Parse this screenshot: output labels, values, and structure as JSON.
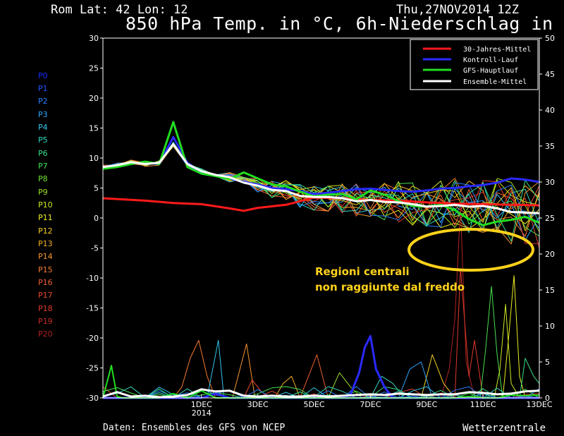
{
  "header": {
    "location": "Rom   Lat: 42 Lon: 12",
    "date": "Thu,27NOV2014 12Z",
    "title": "850 hPa Temp. in °C, 6h-Niederschlag in mm"
  },
  "footer": {
    "source": "Daten: Ensembles des GFS von NCEP",
    "brand": "Wetterzentrale"
  },
  "members": [
    {
      "label": "P0",
      "color": "#1b2bff"
    },
    {
      "label": "P1",
      "color": "#2255ff"
    },
    {
      "label": "P2",
      "color": "#2a80ff"
    },
    {
      "label": "P3",
      "color": "#2fa6ff"
    },
    {
      "label": "P4",
      "color": "#33c6ee"
    },
    {
      "label": "P5",
      "color": "#33d6c0"
    },
    {
      "label": "P6",
      "color": "#35de88"
    },
    {
      "label": "P7",
      "color": "#45e050"
    },
    {
      "label": "P8",
      "color": "#6ee030"
    },
    {
      "label": "P9",
      "color": "#a0e024"
    },
    {
      "label": "P10",
      "color": "#ccea22"
    },
    {
      "label": "P11",
      "color": "#ecec22"
    },
    {
      "label": "P12",
      "color": "#f4d022"
    },
    {
      "label": "P13",
      "color": "#f5b024"
    },
    {
      "label": "P14",
      "color": "#f59630"
    },
    {
      "label": "P15",
      "color": "#f57b30"
    },
    {
      "label": "P16",
      "color": "#f06030"
    },
    {
      "label": "P17",
      "color": "#e84830"
    },
    {
      "label": "P18",
      "color": "#df3a2c"
    },
    {
      "label": "P19",
      "color": "#c92b28"
    },
    {
      "label": "P20",
      "color": "#b02222"
    }
  ],
  "legend": [
    {
      "label": "30-Jahres-Mittel",
      "color": "#ff1a1a"
    },
    {
      "label": "Kontroll-Lauf",
      "color": "#2a2aff"
    },
    {
      "label": "GFS-Hauptlauf",
      "color": "#22dd22"
    },
    {
      "label": "Ensemble-Mittel",
      "color": "#ffffff"
    }
  ],
  "annotation": {
    "line1": "Regioni centrali",
    "line2": "non raggiunte dal freddo",
    "color": "#ffd21a"
  },
  "chart_data": {
    "type": "line",
    "title": "850 hPa Temp. in °C, 6h-Niederschlag in mm",
    "y_left_label": "°C",
    "y_right_label": "mm",
    "y_left_range": [
      -30,
      30
    ],
    "y_left_ticks": [
      30,
      25,
      20,
      15,
      10,
      5,
      0,
      -5,
      -10,
      -15,
      -20,
      -25,
      -30
    ],
    "y_right_range": [
      0,
      50
    ],
    "y_right_ticks": [
      50,
      45,
      40,
      35,
      30,
      25,
      20,
      15,
      10,
      5,
      0
    ],
    "x_range": [
      -3.5,
      12.0
    ],
    "x_ticks": [
      {
        "x": 0,
        "label": "1DEC",
        "sub": "2014"
      },
      {
        "x": 2,
        "label": "3DEC",
        "sub": ""
      },
      {
        "x": 4,
        "label": "5DEC",
        "sub": ""
      },
      {
        "x": 6,
        "label": "7DEC",
        "sub": ""
      },
      {
        "x": 8,
        "label": "9DEC",
        "sub": ""
      },
      {
        "x": 10,
        "label": "11DEC",
        "sub": ""
      },
      {
        "x": 12,
        "label": "13DEC",
        "sub": ""
      }
    ],
    "x_unit": "days since 1DEC",
    "grid": false,
    "legend_position": "top-right",
    "series_temp": [
      {
        "name": "30-Jahres-Mittel",
        "color": "#ff1a1a",
        "width": 3,
        "x": [
          -3.5,
          -2,
          -1,
          0,
          1,
          1.5,
          2,
          3,
          4,
          5,
          6,
          7,
          8,
          9,
          10,
          11,
          12
        ],
        "y": [
          3.3,
          2.9,
          2.5,
          2.3,
          1.6,
          1.2,
          1.7,
          2.2,
          3.4,
          3.3,
          3.0,
          2.9,
          2.6,
          2.4,
          2.3,
          2.2,
          2.1
        ]
      },
      {
        "name": "Ensemble-Mittel",
        "color": "#ffffff",
        "width": 3,
        "x": [
          -3.5,
          -3,
          -2.5,
          -2,
          -1.5,
          -1,
          -0.5,
          0,
          0.5,
          1,
          1.5,
          2,
          2.5,
          3,
          3.5,
          4,
          4.5,
          5,
          5.5,
          6,
          6.5,
          7,
          7.5,
          8,
          8.5,
          9,
          9.5,
          10,
          10.5,
          11,
          11.5,
          12
        ],
        "y": [
          8.5,
          8.8,
          9.3,
          9.0,
          9.2,
          12.3,
          9.0,
          7.8,
          7.2,
          6.8,
          5.9,
          5.4,
          4.7,
          4.5,
          3.7,
          3.5,
          3.5,
          3.3,
          2.8,
          3.0,
          2.7,
          2.6,
          2.3,
          1.9,
          2.0,
          2.2,
          1.9,
          2.0,
          1.6,
          1.0,
          0.9,
          0.8
        ]
      },
      {
        "name": "GFS-Hauptlauf",
        "color": "#22dd22",
        "width": 3,
        "x": [
          -3.5,
          -3,
          -2.5,
          -2,
          -1.5,
          -1,
          -0.5,
          0,
          0.5,
          1,
          1.5,
          2,
          2.5,
          3,
          3.5,
          4,
          4.5,
          5,
          5.5,
          6,
          6.5,
          7,
          7.5,
          8,
          8.5,
          9,
          9.5,
          10,
          10.5,
          11,
          11.5,
          12
        ],
        "y": [
          8.2,
          8.5,
          9.0,
          9.4,
          9.0,
          16.0,
          8.5,
          7.4,
          7.0,
          6.5,
          7.6,
          6.6,
          5.6,
          5.3,
          4.4,
          3.6,
          3.9,
          4.0,
          3.1,
          4.6,
          3.9,
          2.8,
          2.0,
          1.9,
          2.2,
          1.3,
          -0.2,
          -1.2,
          -0.6,
          -0.3,
          0.2,
          -0.8
        ]
      },
      {
        "name": "Kontroll-Lauf",
        "color": "#2a2aff",
        "width": 3,
        "x": [
          -3.5,
          -3,
          -2.5,
          -2,
          -1.5,
          -1,
          -0.5,
          0,
          0.5,
          1,
          1.5,
          2,
          2.5,
          3,
          3.5,
          4,
          4.5,
          5,
          5.5,
          6,
          6.5,
          7,
          7.5,
          8,
          8.5,
          9,
          9.5,
          10,
          10.5,
          11,
          11.5,
          12
        ],
        "y": [
          8.3,
          8.7,
          9.1,
          9.2,
          9.0,
          13.5,
          9.2,
          7.6,
          7.0,
          6.6,
          6.0,
          5.6,
          5.0,
          4.8,
          4.5,
          4.0,
          4.2,
          4.5,
          4.8,
          4.9,
          4.7,
          4.5,
          4.4,
          4.6,
          4.9,
          5.0,
          5.3,
          5.5,
          5.9,
          6.6,
          6.4,
          6.0
        ]
      }
    ],
    "series_precip": [
      {
        "name": "Kontroll-Lauf",
        "color": "#2a2aff",
        "width": 3,
        "x": [
          -3.5,
          -3,
          -2.5,
          -2,
          -1.5,
          -1,
          -0.5,
          0,
          0.5,
          1,
          1.5,
          2,
          2.5,
          3,
          3.5,
          4,
          4.5,
          5,
          5.5,
          6,
          6.5,
          7,
          7.5,
          8,
          8.5,
          9,
          9.5,
          10,
          10.5,
          11,
          11.5,
          12
        ],
        "y": [
          0,
          0,
          0,
          0,
          0,
          0,
          0,
          0,
          0.6,
          0,
          0,
          0,
          0,
          0,
          0,
          0,
          0,
          0,
          0,
          0,
          0,
          0,
          0,
          0,
          0,
          0,
          0,
          0,
          0,
          0,
          0,
          0
        ]
      },
      {
        "name": "Kontroll-Lauf peak",
        "color": "#2a2aff",
        "width": 3,
        "x": [
          5,
          5.3,
          5.6,
          5.8,
          6,
          6.2,
          6.5,
          6.8
        ],
        "y": [
          0,
          0.5,
          3.5,
          7.0,
          8.6,
          4.0,
          1.5,
          0
        ]
      },
      {
        "name": "GFS-Hauptlauf",
        "color": "#22dd22",
        "width": 2,
        "x": [
          -3.5,
          -3.2,
          -3,
          -2.8,
          -2.5,
          -2,
          -1.5,
          -1,
          -0.5,
          0,
          0.5,
          1,
          1.5,
          2,
          2.5,
          3,
          3.5,
          4,
          4.5,
          5,
          5.5,
          6,
          6.5,
          7,
          7.5,
          8,
          8.5,
          9,
          9.5,
          10,
          10.5,
          11,
          11.5,
          12
        ],
        "y": [
          0,
          4.5,
          0.2,
          0,
          0,
          0,
          0,
          0.6,
          0,
          1.0,
          0,
          0,
          0,
          0,
          0,
          0,
          0,
          0,
          0,
          0,
          0,
          0,
          0,
          0,
          0,
          0,
          0,
          0,
          0.2,
          0,
          0,
          0.4,
          0.3,
          0.4
        ]
      },
      {
        "name": "Ensemble-Mittel",
        "color": "#ffffff",
        "width": 3,
        "x": [
          -3.5,
          -3,
          -2.5,
          -2,
          -1.5,
          -1,
          -0.5,
          0,
          0.5,
          1,
          1.5,
          2,
          2.5,
          3,
          3.5,
          4,
          4.5,
          5,
          5.5,
          6,
          6.5,
          7,
          7.5,
          8,
          8.5,
          9,
          9.5,
          10,
          10.5,
          11,
          11.5,
          12
        ],
        "y": [
          0.2,
          0.8,
          0.2,
          0.3,
          0.1,
          0.2,
          0.4,
          1.2,
          0.9,
          1.0,
          0.3,
          0.2,
          0.3,
          0.2,
          0.2,
          0.3,
          0.2,
          0.3,
          0.4,
          0.5,
          0.4,
          0.6,
          0.5,
          0.4,
          0.5,
          0.5,
          0.8,
          0.7,
          0.5,
          0.6,
          0.9,
          1.0
        ]
      }
    ],
    "precip_members": [
      {
        "color": "#f57b30",
        "x": [
          -1,
          -0.7,
          -0.4,
          -0.1,
          0.2,
          0.5
        ],
        "y": [
          0,
          1.5,
          5.5,
          8.0,
          3.0,
          0
        ]
      },
      {
        "color": "#33c6ee",
        "x": [
          0.2,
          0.4,
          0.6,
          0.8
        ],
        "y": [
          0,
          4.0,
          8.0,
          0
        ]
      },
      {
        "color": "#f59630",
        "x": [
          1.1,
          1.3,
          1.6,
          1.9
        ],
        "y": [
          0,
          3.0,
          7.5,
          0
        ]
      },
      {
        "color": "#b02222",
        "x": [
          8.5,
          8.8,
          9.0,
          9.2,
          9.4,
          9.7
        ],
        "y": [
          0,
          4.0,
          11.0,
          26.5,
          5.0,
          0
        ]
      },
      {
        "color": "#df3a2c",
        "x": [
          9.0,
          9.2,
          9.5,
          9.7,
          10.0
        ],
        "y": [
          0,
          18.0,
          3.0,
          8.0,
          0
        ]
      },
      {
        "color": "#45e050",
        "x": [
          9.9,
          10.1,
          10.3,
          10.5,
          10.7
        ],
        "y": [
          0,
          7.0,
          15.5,
          6.0,
          0
        ]
      },
      {
        "color": "#ecec22",
        "x": [
          10.7,
          10.9,
          11.1,
          11.3,
          11.5
        ],
        "y": [
          0,
          8.0,
          17.0,
          3.0,
          0
        ]
      },
      {
        "color": "#ccea22",
        "x": [
          10.4,
          10.6,
          10.8,
          11.0,
          11.3
        ],
        "y": [
          0,
          4.0,
          13.0,
          2.0,
          0
        ]
      },
      {
        "color": "#f4d022",
        "x": [
          7.8,
          8.2,
          8.6,
          9.0
        ],
        "y": [
          0,
          6.0,
          2.0,
          0
        ]
      },
      {
        "color": "#35de88",
        "x": [
          11.3,
          11.5,
          11.8,
          12.0
        ],
        "y": [
          0,
          5.5,
          3.0,
          2.0
        ]
      },
      {
        "color": "#f06030",
        "x": [
          3.5,
          3.8,
          4.1,
          4.5
        ],
        "y": [
          0,
          3.0,
          6.0,
          0
        ]
      },
      {
        "color": "#2fa6ff",
        "x": [
          7.0,
          7.4,
          7.8,
          8.2
        ],
        "y": [
          0,
          4.0,
          5.0,
          0
        ]
      },
      {
        "color": "#e84830",
        "x": [
          1.5,
          1.8,
          2.1,
          2.4
        ],
        "y": [
          0,
          2.5,
          1.0,
          0
        ]
      },
      {
        "color": "#a0e024",
        "x": [
          4.5,
          4.9,
          5.3,
          5.7
        ],
        "y": [
          0,
          3.5,
          1.5,
          0
        ]
      },
      {
        "color": "#33d6c0",
        "x": [
          6.0,
          6.4,
          6.8,
          7.2
        ],
        "y": [
          0,
          3.0,
          2.0,
          0
        ]
      },
      {
        "color": "#f5b024",
        "x": [
          2.6,
          2.9,
          3.2,
          3.5
        ],
        "y": [
          0,
          2.0,
          3.0,
          0
        ]
      }
    ],
    "temp_members": [
      {
        "color": "#f57b30",
        "seed": 1
      },
      {
        "color": "#ecec22",
        "seed": 2
      },
      {
        "color": "#33c6ee",
        "seed": 3
      },
      {
        "color": "#e84830",
        "seed": 4
      },
      {
        "color": "#f5b024",
        "seed": 5
      },
      {
        "color": "#2fa6ff",
        "seed": 6
      },
      {
        "color": "#45e050",
        "seed": 7
      },
      {
        "color": "#f06030",
        "seed": 8
      },
      {
        "color": "#ccea22",
        "seed": 9
      },
      {
        "color": "#33d6c0",
        "seed": 10
      },
      {
        "color": "#df3a2c",
        "seed": 11
      },
      {
        "color": "#f4d022",
        "seed": 12
      },
      {
        "color": "#2a80ff",
        "seed": 13
      },
      {
        "color": "#a0e024",
        "seed": 14
      },
      {
        "color": "#f59630",
        "seed": 15
      },
      {
        "color": "#35de88",
        "seed": 16
      }
    ]
  }
}
